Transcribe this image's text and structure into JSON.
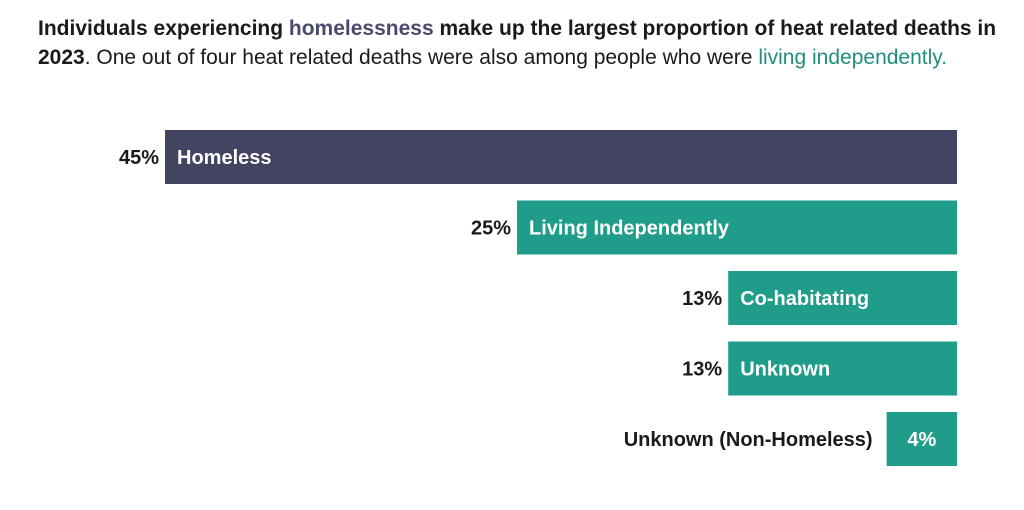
{
  "title": {
    "part1": "Individuals experiencing ",
    "highlight_homeless": "homelessness",
    "part2": " make up the largest proportion of heat related deaths in 2023",
    "part3": ". One out of four heat related deaths were also among people who were ",
    "highlight_living": "living independently",
    "part4": "."
  },
  "colors": {
    "homeless": "#434362",
    "other": "#1f9c8a",
    "highlight_homeless": "#4a4a6e",
    "highlight_living": "#1f8f7d"
  },
  "chart_data": {
    "type": "bar",
    "orientation": "horizontal",
    "alignment": "right",
    "categories": [
      "Homeless",
      "Living Independently",
      "Co-habitating",
      "Unknown",
      "Unknown (Non-Homeless)"
    ],
    "values": [
      45,
      25,
      13,
      13,
      4
    ],
    "value_labels": [
      "45%",
      "25%",
      "13%",
      "13%",
      "4%"
    ],
    "unit": "%",
    "grid": false,
    "legend": false
  }
}
